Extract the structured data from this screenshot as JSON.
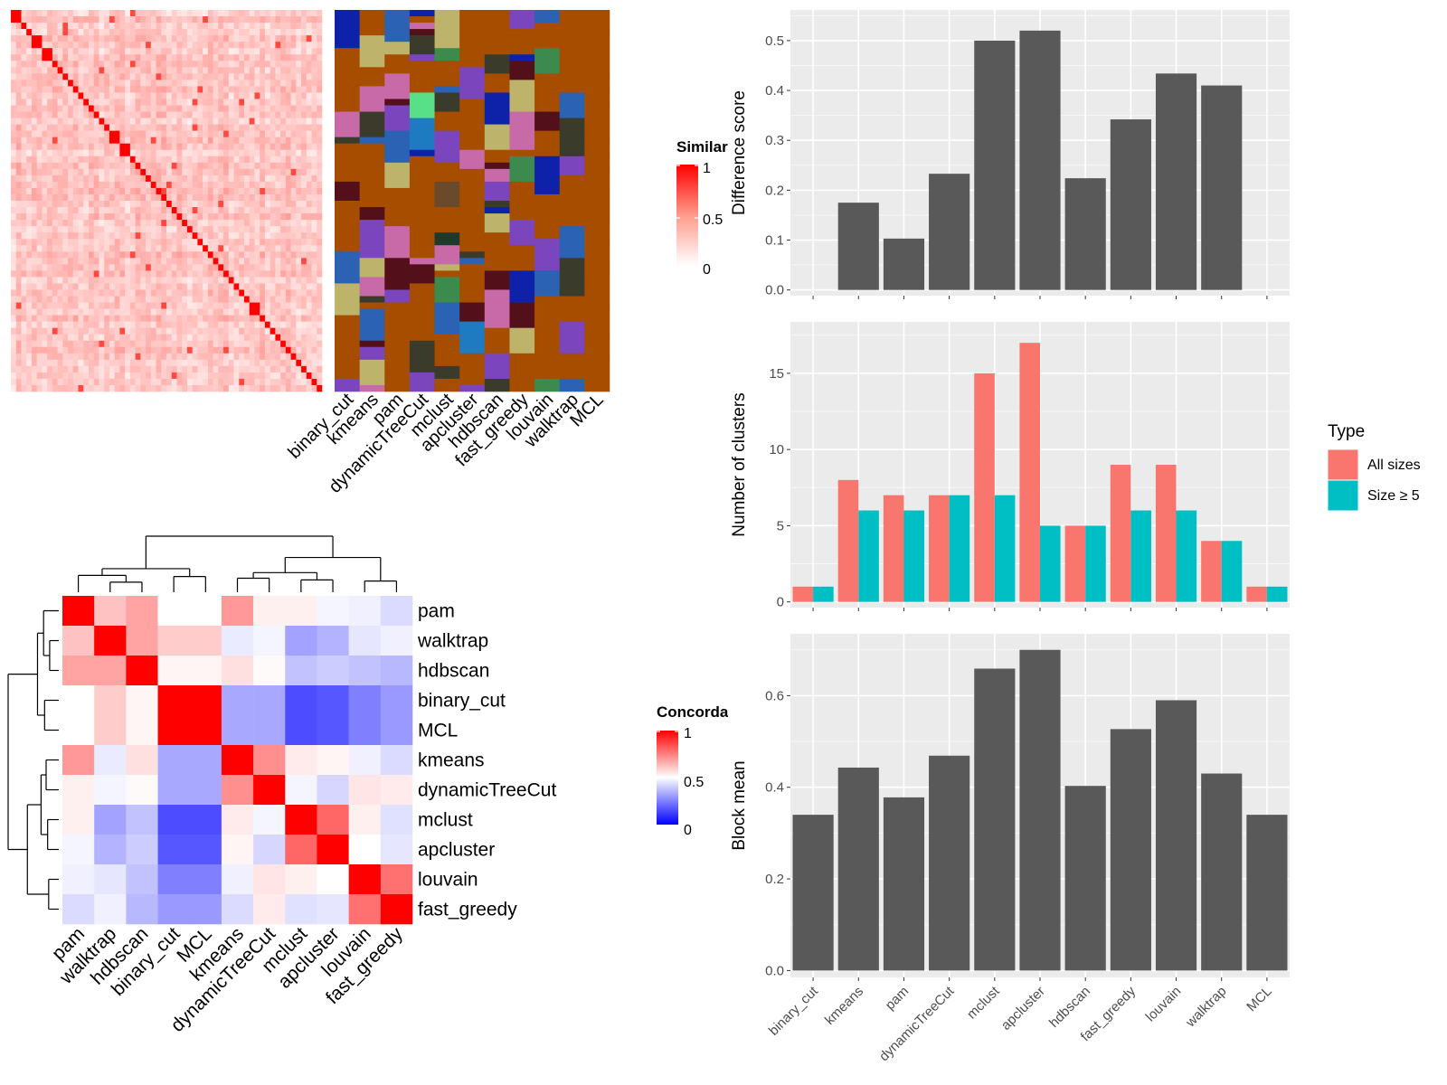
{
  "chart_data": [
    {
      "type": "heatmap",
      "panel": "similarity",
      "legend_title": "Similarity",
      "legend_ticks": [
        "1",
        "0.5",
        "0"
      ],
      "method_labels": [
        "binary_cut",
        "kmeans",
        "pam",
        "dynamicTreeCut",
        "mclust",
        "apcluster",
        "hdbscan",
        "fast_greedy",
        "louvain",
        "walktrap",
        "MCL"
      ]
    },
    {
      "type": "heatmap",
      "panel": "concordance",
      "legend_title": "Concordance",
      "legend_ticks": [
        "1",
        "0.5",
        "0"
      ],
      "labels": [
        "pam",
        "walktrap",
        "hdbscan",
        "binary_cut",
        "MCL",
        "kmeans",
        "dynamicTreeCut",
        "mclust",
        "apcluster",
        "louvain",
        "fast_greedy"
      ],
      "values": [
        [
          1.0,
          0.62,
          0.68,
          0.5,
          0.5,
          0.7,
          0.53,
          0.53,
          0.48,
          0.47,
          0.43
        ],
        [
          0.62,
          1.0,
          0.68,
          0.6,
          0.6,
          0.46,
          0.48,
          0.32,
          0.35,
          0.45,
          0.47
        ],
        [
          0.68,
          0.68,
          1.0,
          0.52,
          0.52,
          0.56,
          0.51,
          0.38,
          0.4,
          0.38,
          0.36
        ],
        [
          0.5,
          0.6,
          0.52,
          1.0,
          1.0,
          0.33,
          0.33,
          0.15,
          0.17,
          0.25,
          0.3
        ],
        [
          0.5,
          0.6,
          0.52,
          1.0,
          1.0,
          0.33,
          0.33,
          0.15,
          0.17,
          0.25,
          0.3
        ],
        [
          0.7,
          0.46,
          0.56,
          0.33,
          0.33,
          1.0,
          0.72,
          0.54,
          0.52,
          0.47,
          0.43
        ],
        [
          0.53,
          0.48,
          0.51,
          0.33,
          0.33,
          0.72,
          1.0,
          0.48,
          0.42,
          0.55,
          0.54
        ],
        [
          0.53,
          0.32,
          0.38,
          0.15,
          0.15,
          0.54,
          0.48,
          1.0,
          0.8,
          0.53,
          0.44
        ],
        [
          0.48,
          0.35,
          0.4,
          0.17,
          0.17,
          0.52,
          0.42,
          0.8,
          1.0,
          0.5,
          0.45
        ],
        [
          0.47,
          0.45,
          0.38,
          0.25,
          0.25,
          0.47,
          0.55,
          0.53,
          0.5,
          1.0,
          0.78
        ],
        [
          0.43,
          0.47,
          0.36,
          0.3,
          0.3,
          0.43,
          0.54,
          0.44,
          0.45,
          0.78,
          1.0
        ]
      ]
    },
    {
      "type": "bar",
      "panel": "difference",
      "categories": [
        "binary_cut",
        "kmeans",
        "pam",
        "dynamicTreeCut",
        "mclust",
        "apcluster",
        "hdbscan",
        "fast_greedy",
        "louvain",
        "walktrap",
        "MCL"
      ],
      "values": [
        0,
        0.175,
        0.103,
        0.233,
        0.5,
        0.52,
        0.224,
        0.342,
        0.434,
        0.41,
        0
      ],
      "ylabel": "Difference score",
      "ylim": [
        0,
        0.55
      ],
      "yticks": [
        0.0,
        0.1,
        0.2,
        0.3,
        0.4,
        0.5
      ],
      "ytick_labels": [
        "0.0",
        "0.1",
        "0.2",
        "0.3",
        "0.4",
        "0.5"
      ],
      "color": "#595959"
    },
    {
      "type": "bar",
      "panel": "clusters",
      "categories": [
        "binary_cut",
        "kmeans",
        "pam",
        "dynamicTreeCut",
        "mclust",
        "apcluster",
        "hdbscan",
        "fast_greedy",
        "louvain",
        "walktrap",
        "MCL"
      ],
      "series": [
        {
          "name": "All sizes",
          "values": [
            1,
            8,
            7,
            7,
            15,
            17,
            5,
            9,
            9,
            4,
            1
          ],
          "color": "#F8766D"
        },
        {
          "name": "Size ≥ 5",
          "values": [
            1,
            6,
            6,
            7,
            7,
            5,
            5,
            6,
            6,
            4,
            1
          ],
          "color": "#00BFC4"
        }
      ],
      "ylabel": "Number of clusters",
      "ylim": [
        0,
        18
      ],
      "yticks": [
        0,
        5,
        10,
        15
      ],
      "ytick_labels": [
        "0",
        "5",
        "10",
        "15"
      ],
      "legend_title": "Type",
      "legend_position": "right"
    },
    {
      "type": "bar",
      "panel": "blockmean",
      "categories": [
        "binary_cut",
        "kmeans",
        "pam",
        "dynamicTreeCut",
        "mclust",
        "apcluster",
        "hdbscan",
        "fast_greedy",
        "louvain",
        "walktrap",
        "MCL"
      ],
      "values": [
        0.34,
        0.443,
        0.378,
        0.469,
        0.659,
        0.7,
        0.403,
        0.527,
        0.59,
        0.43,
        0.34
      ],
      "ylabel": "Block mean",
      "ylim": [
        0,
        0.72
      ],
      "yticks": [
        0.0,
        0.2,
        0.4,
        0.6
      ],
      "ytick_labels": [
        "0.0",
        "0.2",
        "0.4",
        "0.6"
      ],
      "color": "#595959"
    }
  ]
}
